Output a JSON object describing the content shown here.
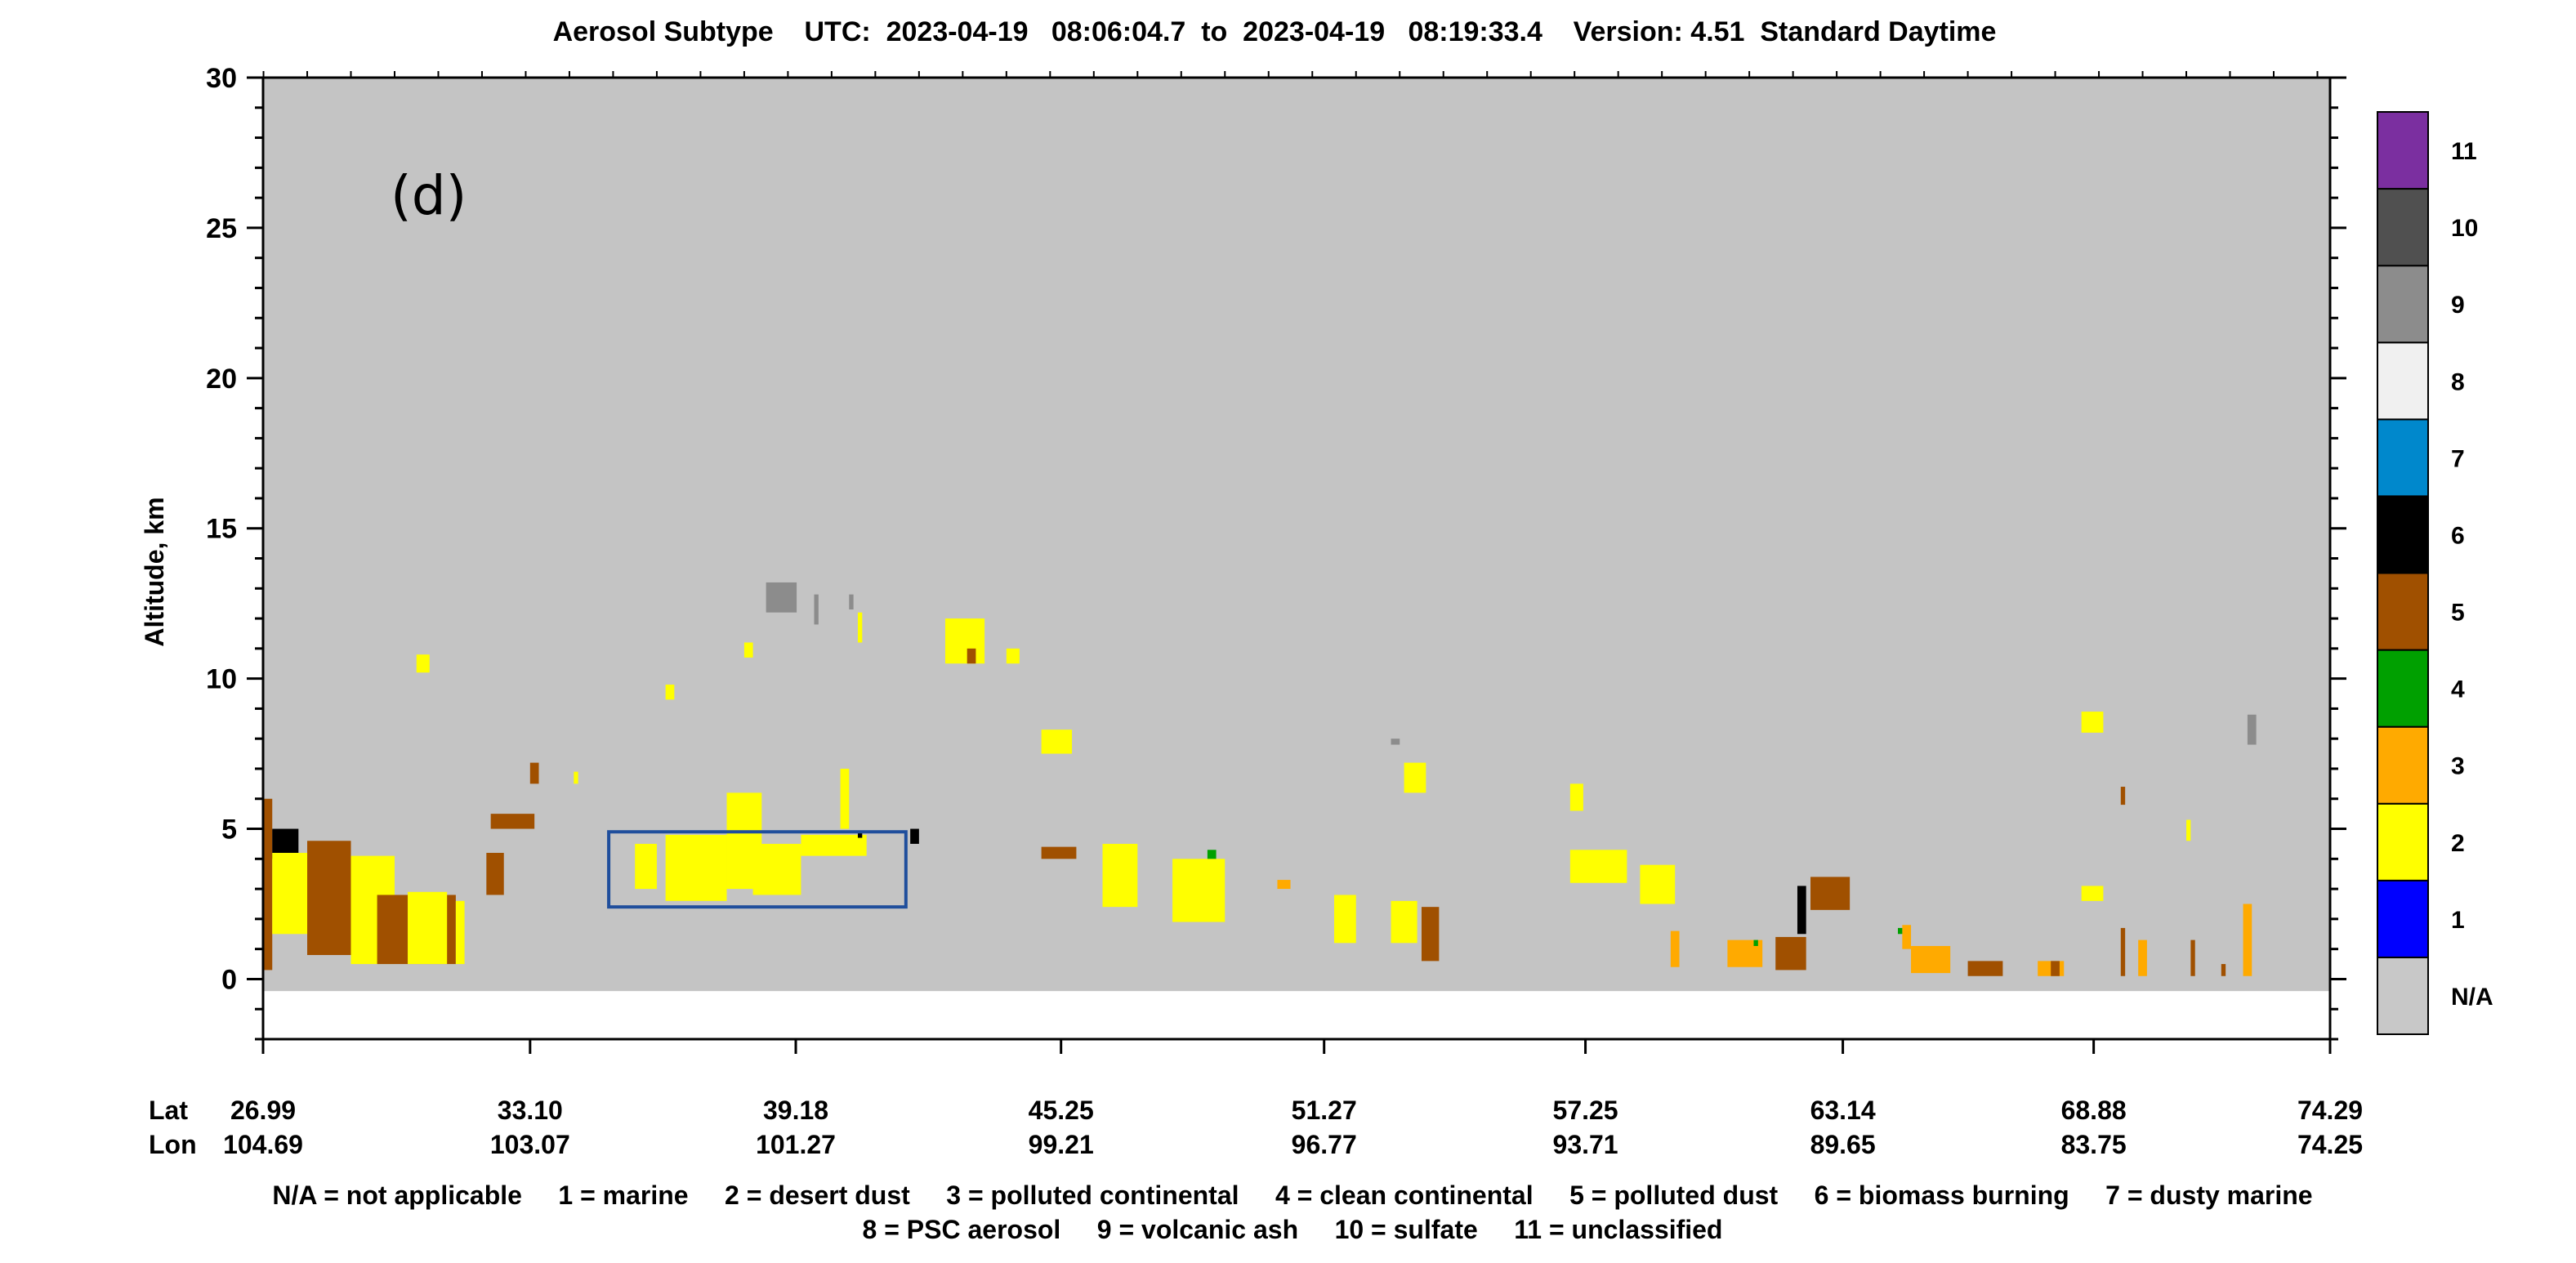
{
  "title": "Aerosol Subtype    UTC:  2023-04-19   08:06:04.7  to  2023-04-19   08:19:33.4    Version: 4.51  Standard Daytime",
  "panel_label": "(d)",
  "footnote": {
    "line1": "N/A = not applicable     1 = marine     2 = desert dust     3 = polluted continental     4 = clean continental     5 = polluted dust     6 = biomass burning     7 = dusty marine",
    "line2": "8 = PSC aerosol     9 = volcanic ash     10 = sulfate     11 = unclassified"
  },
  "chart_data": {
    "type": "heatmap",
    "title": "Aerosol Subtype    UTC:  2023-04-19   08:06:04.7  to  2023-04-19   08:19:33.4    Version: 4.51  Standard Daytime",
    "ylabel": "Altitude, km",
    "ylim": [
      -2,
      30
    ],
    "y_ticks": [
      0,
      5,
      10,
      15,
      20,
      25,
      30
    ],
    "x_row_labels": [
      "Lat",
      "Lon"
    ],
    "x_ticks": [
      {
        "lat": "26.99",
        "lon": "104.69"
      },
      {
        "lat": "33.10",
        "lon": "103.07"
      },
      {
        "lat": "39.18",
        "lon": "101.27"
      },
      {
        "lat": "45.25",
        "lon": "99.21"
      },
      {
        "lat": "51.27",
        "lon": "96.77"
      },
      {
        "lat": "57.25",
        "lon": "93.71"
      },
      {
        "lat": "63.14",
        "lon": "89.65"
      },
      {
        "lat": "68.88",
        "lon": "83.75"
      },
      {
        "lat": "74.29",
        "lon": "74.25"
      }
    ],
    "background_color": "#c4c4c4",
    "colorbar": [
      {
        "label": "N/A",
        "color": "#c8c8c8"
      },
      {
        "label": "1",
        "color": "#0000ff"
      },
      {
        "label": "2",
        "color": "#ffff00"
      },
      {
        "label": "3",
        "color": "#ffaa00"
      },
      {
        "label": "4",
        "color": "#00a000"
      },
      {
        "label": "5",
        "color": "#a05000"
      },
      {
        "label": "6",
        "color": "#000000"
      },
      {
        "label": "7",
        "color": "#0088cc"
      },
      {
        "label": "8",
        "color": "#f0f0f0"
      },
      {
        "label": "9",
        "color": "#8c8c8c"
      },
      {
        "label": "10",
        "color": "#505050"
      },
      {
        "label": "11",
        "color": "#7b2fa0"
      }
    ],
    "highlight_box": {
      "lat_range": [
        34.9,
        41.7
      ],
      "alt_range": [
        2.4,
        4.9
      ],
      "color": "#1f4e9c"
    },
    "patches": [
      {
        "lat": [
          26.99,
          27.2
        ],
        "alt": [
          0.3,
          6.0
        ],
        "code": "5"
      },
      {
        "lat": [
          27.2,
          27.8
        ],
        "alt": [
          4.0,
          5.0
        ],
        "code": "6"
      },
      {
        "lat": [
          27.2,
          28.4
        ],
        "alt": [
          1.5,
          4.2
        ],
        "code": "2"
      },
      {
        "lat": [
          28.0,
          29.0
        ],
        "alt": [
          0.8,
          4.6
        ],
        "code": "5"
      },
      {
        "lat": [
          29.0,
          30.0
        ],
        "alt": [
          0.5,
          4.1
        ],
        "code": "2"
      },
      {
        "lat": [
          29.6,
          31.4
        ],
        "alt": [
          0.5,
          2.8
        ],
        "code": "5"
      },
      {
        "lat": [
          30.3,
          31.2
        ],
        "alt": [
          0.5,
          2.9
        ],
        "code": "2"
      },
      {
        "lat": [
          31.4,
          31.6
        ],
        "alt": [
          0.5,
          2.6
        ],
        "code": "2"
      },
      {
        "lat": [
          30.5,
          30.8
        ],
        "alt": [
          10.2,
          10.8
        ],
        "code": "2"
      },
      {
        "lat": [
          32.1,
          32.5
        ],
        "alt": [
          2.8,
          4.2
        ],
        "code": "5"
      },
      {
        "lat": [
          32.2,
          33.2
        ],
        "alt": [
          5.0,
          5.5
        ],
        "code": "5"
      },
      {
        "lat": [
          33.1,
          33.3
        ],
        "alt": [
          6.5,
          7.2
        ],
        "code": "5"
      },
      {
        "lat": [
          34.1,
          34.2
        ],
        "alt": [
          6.5,
          6.9
        ],
        "code": "2"
      },
      {
        "lat": [
          35.5,
          36.0
        ],
        "alt": [
          3.0,
          4.5
        ],
        "code": "2"
      },
      {
        "lat": [
          36.2,
          37.6
        ],
        "alt": [
          2.6,
          4.8
        ],
        "code": "2"
      },
      {
        "lat": [
          37.6,
          38.4
        ],
        "alt": [
          3.0,
          6.2
        ],
        "code": "2"
      },
      {
        "lat": [
          38.2,
          39.3
        ],
        "alt": [
          2.8,
          4.5
        ],
        "code": "2"
      },
      {
        "lat": [
          39.3,
          40.8
        ],
        "alt": [
          4.1,
          4.8
        ],
        "code": "2"
      },
      {
        "lat": [
          36.2,
          36.4
        ],
        "alt": [
          9.3,
          9.8
        ],
        "code": "2"
      },
      {
        "lat": [
          38.0,
          38.2
        ],
        "alt": [
          10.7,
          11.2
        ],
        "code": "2"
      },
      {
        "lat": [
          38.5,
          39.2
        ],
        "alt": [
          12.2,
          13.2
        ],
        "code": "9"
      },
      {
        "lat": [
          39.6,
          39.7
        ],
        "alt": [
          11.8,
          12.8
        ],
        "code": "9"
      },
      {
        "lat": [
          40.4,
          40.5
        ],
        "alt": [
          12.3,
          12.8
        ],
        "code": "9"
      },
      {
        "lat": [
          40.6,
          40.7
        ],
        "alt": [
          11.2,
          12.2
        ],
        "code": "2"
      },
      {
        "lat": [
          40.2,
          40.4
        ],
        "alt": [
          5.0,
          7.0
        ],
        "code": "2"
      },
      {
        "lat": [
          40.6,
          40.7
        ],
        "alt": [
          4.7,
          4.9
        ],
        "code": "6"
      },
      {
        "lat": [
          41.8,
          42.0
        ],
        "alt": [
          4.5,
          5.0
        ],
        "code": "6"
      },
      {
        "lat": [
          42.6,
          43.5
        ],
        "alt": [
          10.5,
          12.0
        ],
        "code": "2"
      },
      {
        "lat": [
          43.1,
          43.3
        ],
        "alt": [
          10.5,
          11.0
        ],
        "code": "5"
      },
      {
        "lat": [
          44.0,
          44.3
        ],
        "alt": [
          10.5,
          11.0
        ],
        "code": "2"
      },
      {
        "lat": [
          44.8,
          45.5
        ],
        "alt": [
          7.5,
          8.3
        ],
        "code": "2"
      },
      {
        "lat": [
          44.8,
          45.6
        ],
        "alt": [
          4.0,
          4.4
        ],
        "code": "5"
      },
      {
        "lat": [
          46.2,
          47.0
        ],
        "alt": [
          2.4,
          4.5
        ],
        "code": "2"
      },
      {
        "lat": [
          47.8,
          49.0
        ],
        "alt": [
          1.9,
          4.0
        ],
        "code": "2"
      },
      {
        "lat": [
          48.6,
          48.8
        ],
        "alt": [
          4.0,
          4.3
        ],
        "code": "4"
      },
      {
        "lat": [
          50.2,
          50.5
        ],
        "alt": [
          3.0,
          3.3
        ],
        "code": "3"
      },
      {
        "lat": [
          51.5,
          52.0
        ],
        "alt": [
          1.2,
          2.8
        ],
        "code": "2"
      },
      {
        "lat": [
          52.8,
          53.4
        ],
        "alt": [
          1.2,
          2.6
        ],
        "code": "2"
      },
      {
        "lat": [
          53.5,
          53.9
        ],
        "alt": [
          0.6,
          2.4
        ],
        "code": "5"
      },
      {
        "lat": [
          52.8,
          53.0
        ],
        "alt": [
          7.8,
          8.0
        ],
        "code": "9"
      },
      {
        "lat": [
          53.1,
          53.6
        ],
        "alt": [
          6.2,
          7.2
        ],
        "code": "2"
      },
      {
        "lat": [
          56.9,
          57.2
        ],
        "alt": [
          5.6,
          6.5
        ],
        "code": "2"
      },
      {
        "lat": [
          56.9,
          58.2
        ],
        "alt": [
          3.2,
          4.3
        ],
        "code": "2"
      },
      {
        "lat": [
          58.5,
          59.3
        ],
        "alt": [
          2.5,
          3.8
        ],
        "code": "2"
      },
      {
        "lat": [
          59.2,
          59.4
        ],
        "alt": [
          0.4,
          1.6
        ],
        "code": "3"
      },
      {
        "lat": [
          60.5,
          61.3
        ],
        "alt": [
          0.4,
          1.3
        ],
        "code": "3"
      },
      {
        "lat": [
          61.1,
          61.2
        ],
        "alt": [
          1.1,
          1.3
        ],
        "code": "4"
      },
      {
        "lat": [
          61.6,
          62.3
        ],
        "alt": [
          0.3,
          1.4
        ],
        "code": "5"
      },
      {
        "lat": [
          62.1,
          62.3
        ],
        "alt": [
          1.5,
          3.1
        ],
        "code": "6"
      },
      {
        "lat": [
          62.4,
          63.3
        ],
        "alt": [
          2.3,
          3.4
        ],
        "code": "5"
      },
      {
        "lat": [
          64.5,
          64.7
        ],
        "alt": [
          1.0,
          1.8
        ],
        "code": "3"
      },
      {
        "lat": [
          64.4,
          64.5
        ],
        "alt": [
          1.5,
          1.7
        ],
        "code": "4"
      },
      {
        "lat": [
          64.7,
          65.6
        ],
        "alt": [
          0.2,
          1.1
        ],
        "code": "3"
      },
      {
        "lat": [
          66.0,
          66.8
        ],
        "alt": [
          0.1,
          0.6
        ],
        "code": "5"
      },
      {
        "lat": [
          67.6,
          68.2
        ],
        "alt": [
          0.1,
          0.6
        ],
        "code": "3"
      },
      {
        "lat": [
          67.9,
          68.1
        ],
        "alt": [
          0.1,
          0.6
        ],
        "code": "5"
      },
      {
        "lat": [
          68.6,
          69.1
        ],
        "alt": [
          8.2,
          8.9
        ],
        "code": "2"
      },
      {
        "lat": [
          68.6,
          69.1
        ],
        "alt": [
          2.6,
          3.1
        ],
        "code": "2"
      },
      {
        "lat": [
          69.5,
          69.6
        ],
        "alt": [
          5.8,
          6.4
        ],
        "code": "5"
      },
      {
        "lat": [
          69.5,
          69.6
        ],
        "alt": [
          0.1,
          1.7
        ],
        "code": "5"
      },
      {
        "lat": [
          69.9,
          70.1
        ],
        "alt": [
          0.1,
          1.3
        ],
        "code": "3"
      },
      {
        "lat": [
          71.0,
          71.1
        ],
        "alt": [
          4.6,
          5.3
        ],
        "code": "2"
      },
      {
        "lat": [
          71.1,
          71.2
        ],
        "alt": [
          0.1,
          1.3
        ],
        "code": "5"
      },
      {
        "lat": [
          71.8,
          71.9
        ],
        "alt": [
          0.1,
          0.5
        ],
        "code": "5"
      },
      {
        "lat": [
          72.3,
          72.5
        ],
        "alt": [
          0.1,
          2.5
        ],
        "code": "3"
      },
      {
        "lat": [
          72.4,
          72.6
        ],
        "alt": [
          7.8,
          8.8
        ],
        "code": "9"
      }
    ]
  }
}
